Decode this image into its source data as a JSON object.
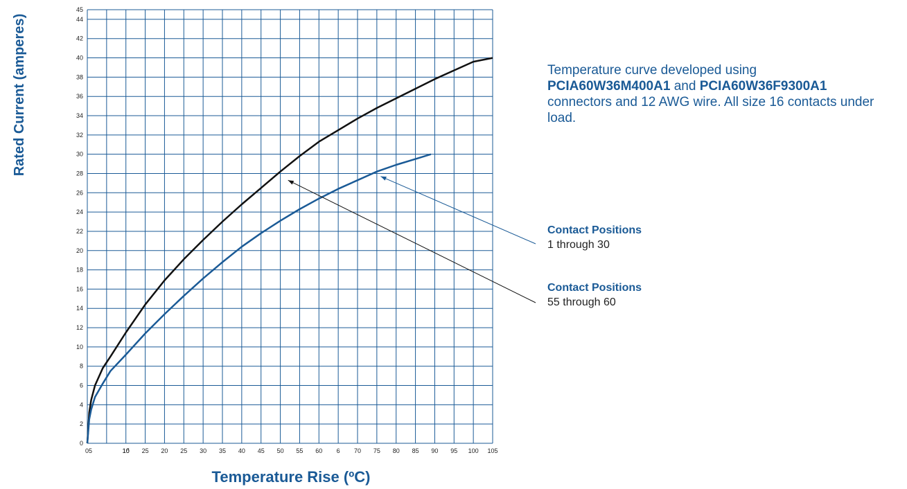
{
  "chart_data": {
    "type": "line",
    "xlabel": "Temperature Rise (ºC)",
    "ylabel": "Rated Current (amperes)",
    "xlim": [
      0,
      105
    ],
    "ylim": [
      0,
      45
    ],
    "grid": true,
    "x_tick_labels": [
      "05",
      "1б",
      "10",
      "25",
      "20",
      "25",
      "30",
      "35",
      "40",
      "45",
      "50",
      "55",
      "60",
      "6",
      "70",
      "75",
      "80",
      "85",
      "90",
      "95",
      "100",
      "105"
    ],
    "y_tick_labels": [
      "0",
      "2",
      "4",
      "6",
      "8",
      "10",
      "12",
      "14",
      "16",
      "18",
      "20",
      "22",
      "24",
      "26",
      "28",
      "30",
      "32",
      "34",
      "36",
      "38",
      "40",
      "42",
      "44",
      "45"
    ],
    "series": [
      {
        "color": "#111111",
        "x": [
          0,
          0.5,
          1,
          2,
          4,
          6,
          10,
          15,
          20,
          25,
          30,
          35,
          40,
          45,
          50,
          55,
          60,
          65,
          70,
          75,
          80,
          85,
          90,
          95,
          100,
          105
        ],
        "y": [
          0,
          3.2,
          4.5,
          6.0,
          7.8,
          9.0,
          11.5,
          14.4,
          16.9,
          19.1,
          21.1,
          23.0,
          24.8,
          26.5,
          28.2,
          29.8,
          31.3,
          32.5,
          33.7,
          34.8,
          35.8,
          36.8,
          37.8,
          38.7,
          39.6,
          40.0
        ]
      },
      {
        "color": "#1a5a96",
        "x": [
          0,
          0.5,
          1,
          2,
          4,
          6,
          10,
          15,
          20,
          25,
          30,
          35,
          40,
          45,
          50,
          55,
          60,
          65,
          70,
          75,
          80,
          85,
          89
        ],
        "y": [
          0,
          2.5,
          3.5,
          4.8,
          6.2,
          7.5,
          9.2,
          11.4,
          13.4,
          15.3,
          17.1,
          18.8,
          20.4,
          21.8,
          23.1,
          24.3,
          25.4,
          26.4,
          27.3,
          28.2,
          28.9,
          29.5,
          30.0
        ]
      }
    ],
    "annotations": [
      {
        "label": "Contact Positions",
        "sublabel": "1 through 30",
        "points_to": {
          "x": 76,
          "y": 27.7
        }
      },
      {
        "label": "Contact Positions",
        "sublabel": "55 through 60",
        "points_to": {
          "x": 52,
          "y": 27.3
        }
      }
    ]
  },
  "note": {
    "line1": "Temperature curve developed using",
    "part_a": "PCIA60W36M400A1",
    "and": " and ",
    "part_b": "PCIA60W36F9300A1",
    "line3": "connectors and 12 AWG wire. All size 16 contacts under load."
  },
  "colors": {
    "accent": "#1a5a96",
    "grid": "#1a5a96",
    "curve_black": "#111111"
  }
}
